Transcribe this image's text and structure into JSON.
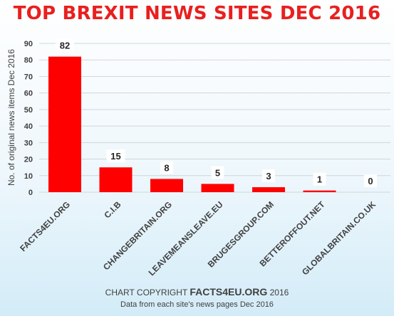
{
  "chart_data": {
    "type": "bar",
    "title": "TOP BREXIT NEWS SITES DEC 2016",
    "ylabel": "No. of original news items Dec 2016",
    "xlabel": "",
    "categories": [
      "FACTS4EU.ORG",
      "C.I.B",
      "CHANGEBRITAIN.ORG",
      "LEAVEMEANSLEAVE.EU",
      "BRUGESGROUP.COM",
      "BETTEROFFOUT.NET",
      "GLOBALBRITAIN.CO.UK"
    ],
    "values": [
      82,
      15,
      8,
      5,
      3,
      1,
      0
    ],
    "ylim": [
      0,
      90
    ],
    "yticks": [
      0,
      10,
      20,
      30,
      40,
      50,
      60,
      70,
      80,
      90
    ],
    "grid": true,
    "bar_color": "#ff0000",
    "label_color": "#e8201f"
  },
  "footer": {
    "line1_prefix": "CHART COPYRIGHT",
    "line1_brand": "FACTS4EU.ORG",
    "line1_suffix": "2016",
    "line2": "Data from each site's news pages Dec 2016"
  }
}
